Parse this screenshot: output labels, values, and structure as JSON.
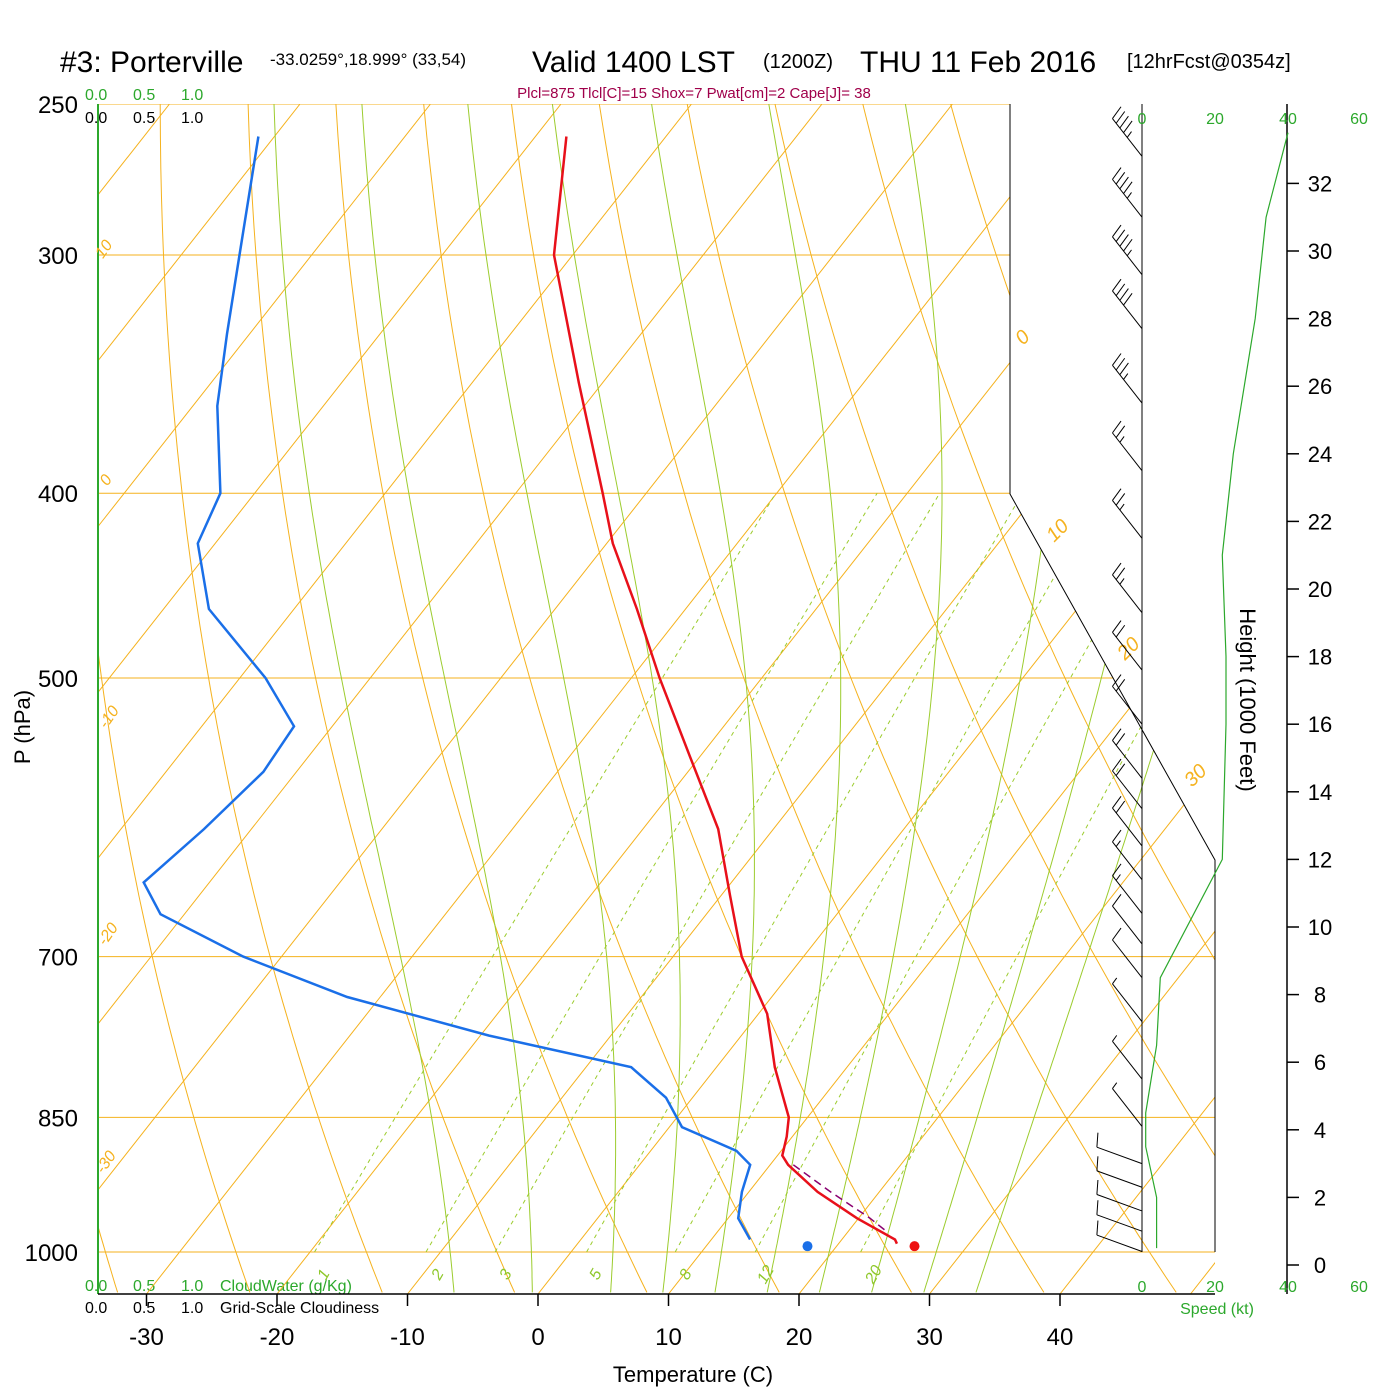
{
  "header": {
    "station": "#3: Porterville",
    "coords": "-33.0259°,18.999° (33,54)",
    "valid": "Valid 1400 LST",
    "zulu": "(1200Z)",
    "date": "THU 11 Feb 2016",
    "forecast": "[12hrFcst@0354z]",
    "params": "Plcl=875 Tlcl[C]=15 Shox=7 Pwat[cm]=2 Cape[J]= 38"
  },
  "axes": {
    "xlabel": "Temperature (C)",
    "ylabel": "P (hPa)",
    "height_label": "Height (1000 Feet)",
    "speed_label": "Speed (kt)",
    "cloudwater_label": "CloudWater (g/Kg)",
    "cloudiness_label": "Grid-Scale Cloudiness"
  },
  "scales": {
    "cloud_ticks": [
      "0.0",
      "0.5",
      "1.0"
    ],
    "speed_ticks": [
      "0",
      "20",
      "40",
      "60"
    ]
  },
  "colors": {
    "isotherm": "#f5b21e",
    "isobar": "#f5b21e",
    "moist_adiabat": "#9ccc2e",
    "mixing_ratio": "#9ccc2e",
    "temperature": "#e8101a",
    "dewpoint": "#1a6fe8",
    "parcel": "#8a0070",
    "wind_speed": "#2ca82c",
    "params": "#a0004a"
  },
  "chart_data": {
    "type": "skew-t",
    "pressure_levels": [
      250,
      300,
      400,
      500,
      700,
      850,
      1000
    ],
    "temperature_ticks": [
      -30,
      -20,
      -10,
      0,
      10,
      20,
      30,
      40
    ],
    "height_ticks": [
      0,
      2,
      4,
      6,
      8,
      10,
      12,
      14,
      16,
      18,
      20,
      22,
      24,
      26,
      28,
      30,
      32
    ],
    "dry_adiabat_labels": [
      "10",
      "0",
      "-10",
      "-20",
      "-30",
      "0",
      "10",
      "20",
      "30"
    ],
    "mixing_ratio_labels": [
      "1",
      "2",
      "3",
      "5",
      "8",
      "12",
      "20"
    ],
    "temperature_profile": [
      {
        "p": 260,
        "t": -65.1
      },
      {
        "p": 300,
        "t": -58.9
      },
      {
        "p": 350,
        "t": -49.3
      },
      {
        "p": 400,
        "t": -40.8
      },
      {
        "p": 425,
        "t": -37.0
      },
      {
        "p": 460,
        "t": -31.2
      },
      {
        "p": 500,
        "t": -25.3
      },
      {
        "p": 550,
        "t": -18.2
      },
      {
        "p": 600,
        "t": -11.7
      },
      {
        "p": 650,
        "t": -6.8
      },
      {
        "p": 700,
        "t": -2.2
      },
      {
        "p": 750,
        "t": 3.2
      },
      {
        "p": 800,
        "t": 7.0
      },
      {
        "p": 850,
        "t": 11.1
      },
      {
        "p": 870,
        "t": 12.1
      },
      {
        "p": 890,
        "t": 12.9
      },
      {
        "p": 900,
        "t": 13.9
      },
      {
        "p": 930,
        "t": 17.8
      },
      {
        "p": 960,
        "t": 22.4
      },
      {
        "p": 985,
        "t": 26.6
      }
    ],
    "dewpoint_profile": [
      {
        "p": 260,
        "t": -88.7
      },
      {
        "p": 300,
        "t": -83.0
      },
      {
        "p": 330,
        "t": -79.2
      },
      {
        "p": 360,
        "t": -75.6
      },
      {
        "p": 400,
        "t": -70.1
      },
      {
        "p": 425,
        "t": -68.8
      },
      {
        "p": 460,
        "t": -64.0
      },
      {
        "p": 500,
        "t": -55.5
      },
      {
        "p": 530,
        "t": -50.4
      },
      {
        "p": 560,
        "t": -50.0
      },
      {
        "p": 600,
        "t": -51.1
      },
      {
        "p": 640,
        "t": -52.5
      },
      {
        "p": 665,
        "t": -49.3
      },
      {
        "p": 700,
        "t": -40.4
      },
      {
        "p": 735,
        "t": -30.0
      },
      {
        "p": 770,
        "t": -16.8
      },
      {
        "p": 800,
        "t": -4.0
      },
      {
        "p": 830,
        "t": 0.5
      },
      {
        "p": 860,
        "t": 3.5
      },
      {
        "p": 885,
        "t": 9.1
      },
      {
        "p": 900,
        "t": 11.0
      },
      {
        "p": 930,
        "t": 12.0
      },
      {
        "p": 960,
        "t": 13.3
      },
      {
        "p": 985,
        "t": 15.5
      }
    ],
    "parcel_profile": [
      {
        "p": 900,
        "t": 14.3
      },
      {
        "p": 930,
        "t": 18.8
      },
      {
        "p": 960,
        "t": 23.4
      },
      {
        "p": 975,
        "t": 25.4
      }
    ],
    "surface_temperature": {
      "p": 993,
      "t": 28.5
    },
    "surface_dewpoint": {
      "p": 993,
      "t": 20.3
    },
    "wind_speed_profile": [
      {
        "h": 0.5,
        "kt": 4
      },
      {
        "h": 2.0,
        "kt": 4
      },
      {
        "h": 3.5,
        "kt": 1
      },
      {
        "h": 4.5,
        "kt": 1
      },
      {
        "h": 6.5,
        "kt": 4
      },
      {
        "h": 8.5,
        "kt": 5
      },
      {
        "h": 12.0,
        "kt": 22
      },
      {
        "h": 16.0,
        "kt": 23
      },
      {
        "h": 18.0,
        "kt": 23
      },
      {
        "h": 21.0,
        "kt": 22
      },
      {
        "h": 24.0,
        "kt": 25
      },
      {
        "h": 28.0,
        "kt": 31
      },
      {
        "h": 31.0,
        "kt": 34
      },
      {
        "h": 33.5,
        "kt": 40
      }
    ],
    "wind_barbs": [
      {
        "h": 32.8,
        "kt": 45
      },
      {
        "h": 31.0,
        "kt": 45
      },
      {
        "h": 29.3,
        "kt": 45
      },
      {
        "h": 27.7,
        "kt": 40
      },
      {
        "h": 25.5,
        "kt": 35
      },
      {
        "h": 23.5,
        "kt": 25
      },
      {
        "h": 21.5,
        "kt": 25
      },
      {
        "h": 19.3,
        "kt": 25
      },
      {
        "h": 17.6,
        "kt": 20
      },
      {
        "h": 16.0,
        "kt": 20
      },
      {
        "h": 14.4,
        "kt": 20
      },
      {
        "h": 13.5,
        "kt": 20
      },
      {
        "h": 12.4,
        "kt": 20
      },
      {
        "h": 11.4,
        "kt": 15
      },
      {
        "h": 10.4,
        "kt": 15
      },
      {
        "h": 9.5,
        "kt": 10
      },
      {
        "h": 8.5,
        "kt": 10
      },
      {
        "h": 7.2,
        "kt": 5
      },
      {
        "h": 5.5,
        "kt": 5
      },
      {
        "h": 4.1,
        "kt": 5
      },
      {
        "h": 3.0,
        "kt": 10
      },
      {
        "h": 2.3,
        "kt": 10
      },
      {
        "h": 1.6,
        "kt": 10
      },
      {
        "h": 1.0,
        "kt": 10
      },
      {
        "h": 0.4,
        "kt": 10
      }
    ]
  }
}
